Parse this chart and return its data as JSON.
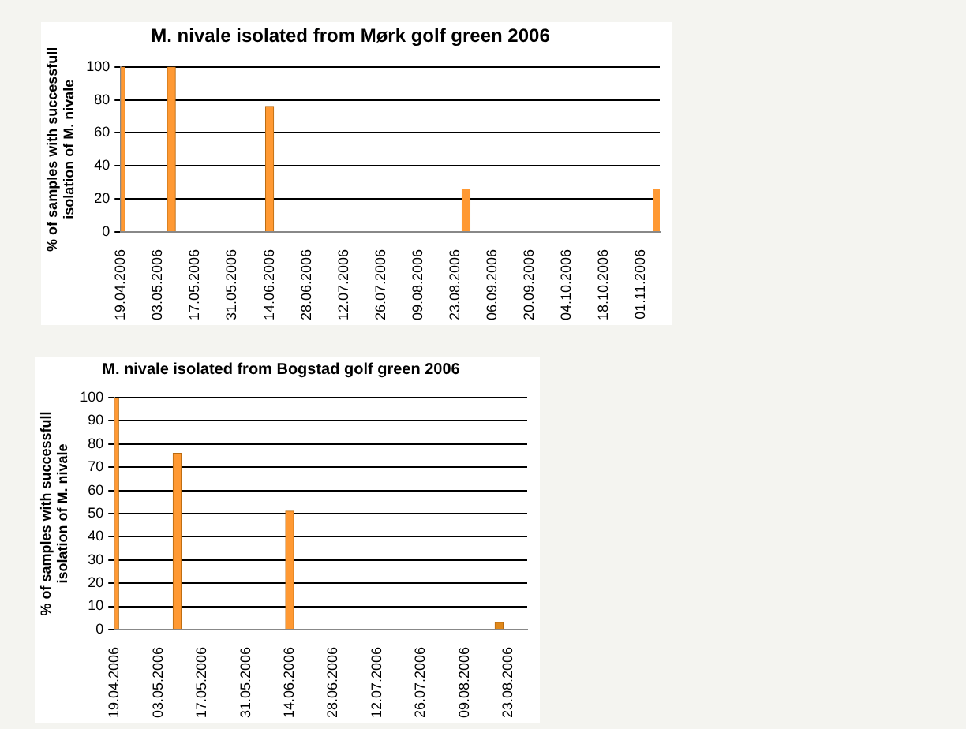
{
  "chart_data": [
    {
      "type": "bar",
      "title": "M. nivale isolated from Mørk golf green 2006",
      "ylabel": "% of samples with successfull isolation of M. nivale",
      "x": [
        "2006-04-19",
        "2006-05-08",
        "2006-06-14",
        "2006-08-27",
        "2006-11-07"
      ],
      "series": [
        {
          "color": "#ff9933",
          "values": [
            100,
            100,
            76,
            26,
            26
          ]
        }
      ],
      "xlim": [
        "2006-04-19",
        "2006-11-08"
      ],
      "xticks": [
        {
          "value": "2006-04-19",
          "label": "19.04.2006"
        },
        {
          "value": "2006-05-03",
          "label": "03.05.2006"
        },
        {
          "value": "2006-05-17",
          "label": "17.05.2006"
        },
        {
          "value": "2006-05-31",
          "label": "31.05.2006"
        },
        {
          "value": "2006-06-14",
          "label": "14.06.2006"
        },
        {
          "value": "2006-06-28",
          "label": "28.06.2006"
        },
        {
          "value": "2006-07-12",
          "label": "12.07.2006"
        },
        {
          "value": "2006-07-26",
          "label": "26.07.2006"
        },
        {
          "value": "2006-08-09",
          "label": "09.08.2006"
        },
        {
          "value": "2006-08-23",
          "label": "23.08.2006"
        },
        {
          "value": "2006-09-06",
          "label": "06.09.2006"
        },
        {
          "value": "2006-09-20",
          "label": "20.09.2006"
        },
        {
          "value": "2006-10-04",
          "label": "04.10.2006"
        },
        {
          "value": "2006-10-18",
          "label": "18.10.2006"
        },
        {
          "value": "2006-11-01",
          "label": "01.11.2006"
        }
      ],
      "ylim": [
        0,
        100
      ],
      "yticks": [
        0,
        20,
        40,
        60,
        80,
        100
      ],
      "grid": "y",
      "legend": false
    },
    {
      "type": "bar",
      "title": "M. nivale isolated from Bogstad golf green 2006",
      "ylabel": "% of samples with successfull isolation of M. nivale",
      "x": [
        "2006-04-19",
        "2006-05-09",
        "2006-06-14",
        "2006-08-20"
      ],
      "series": [
        {
          "colors": [
            "#ff9933",
            "#ff9933",
            "#ff9933",
            "#e0881a"
          ],
          "values": [
            100,
            76,
            51,
            3
          ]
        }
      ],
      "xlim": [
        "2006-04-19",
        "2006-08-29"
      ],
      "xticks": [
        {
          "value": "2006-04-19",
          "label": "19.04.2006"
        },
        {
          "value": "2006-05-03",
          "label": "03.05.2006"
        },
        {
          "value": "2006-05-17",
          "label": "17.05.2006"
        },
        {
          "value": "2006-05-31",
          "label": "31.05.2006"
        },
        {
          "value": "2006-06-14",
          "label": "14.06.2006"
        },
        {
          "value": "2006-06-28",
          "label": "28.06.2006"
        },
        {
          "value": "2006-07-12",
          "label": "12.07.2006"
        },
        {
          "value": "2006-07-26",
          "label": "26.07.2006"
        },
        {
          "value": "2006-08-09",
          "label": "09.08.2006"
        },
        {
          "value": "2006-08-23",
          "label": "23.08.2006"
        }
      ],
      "ylim": [
        0,
        100
      ],
      "yticks": [
        0,
        10,
        20,
        30,
        40,
        50,
        60,
        70,
        80,
        90,
        100
      ],
      "grid": "y",
      "legend": false
    }
  ]
}
